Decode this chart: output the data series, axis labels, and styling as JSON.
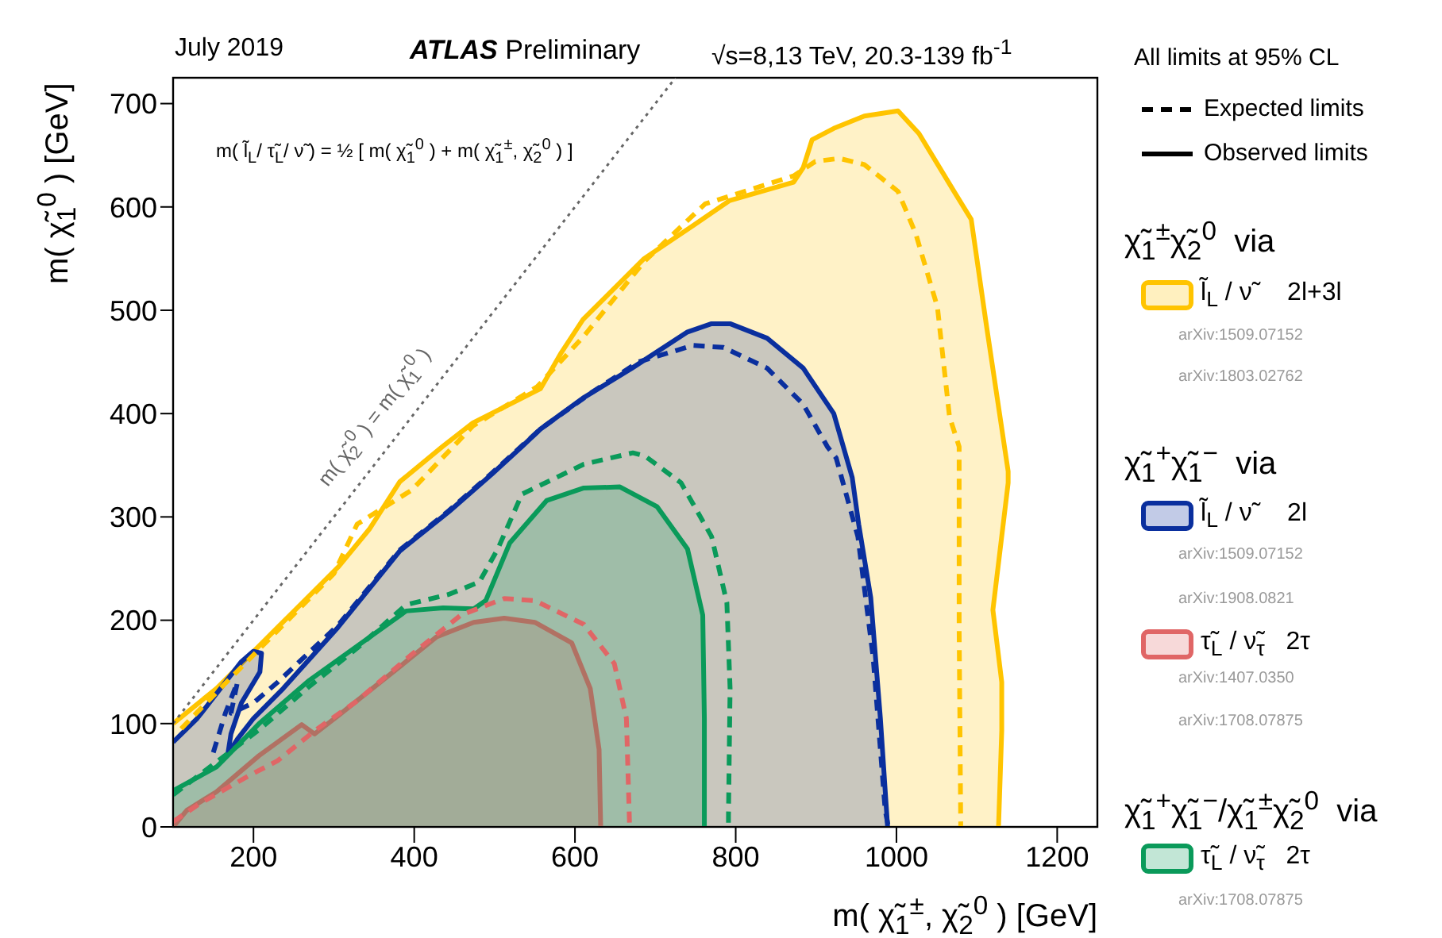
{
  "chart_data": {
    "type": "area",
    "title": "ATLAS Preliminary",
    "xlabel": "m( χ̃$_{1}$$^{±}$, χ̃$_{2}$$^{0}$ ) [GeV]",
    "ylabel": "m( χ̃$_{1}$$^{0}$ ) [GeV]",
    "legend_title": "All limits at 95% CL",
    "legend": "right",
    "grid": false,
    "xlim": [
      100,
      1250
    ],
    "xticks": [
      200,
      400,
      600,
      800,
      1000,
      1200
    ],
    "ylim": [
      0,
      725
    ],
    "yticks": [
      0,
      100,
      200,
      300,
      400,
      500,
      600,
      700
    ],
    "annotations": [
      "July 2019",
      "√s=8,13 TeV, 20.3-139 fb$^{-1}$",
      "m( l̃$_{L}$/ τ̃$_{L}$/ ν̃ ) = ½ [ m( χ̃$_{1}$$^{0}$ ) + m( χ̃$_{1}$$^{±}$,  χ̃$_{2}$$^{0}$ ) ]",
      "m( χ̃$_{2}$$^{0}$ ) = m( χ̃$_{1}$$^{0}$ )",
      "Expected limits",
      "Observed limits",
      "χ̃$_{1}$$^{±}$χ̃$_{2}$$^{0}$  via",
      "arXiv:1509.07152",
      "arXiv:1803.02762",
      "χ̃$_{1}$$^{+}$χ̃$_{1}$$^{−}$  via",
      "arXiv:1509.07152",
      "arXiv:1908.0821",
      "arXiv:1407.0350",
      "arXiv:1708.07875",
      "χ̃$_{1}$$^{+}$χ̃$_{1}$$^{−}$/χ̃$_{1}$$^{±}$χ̃$_{2}$$^{0}$  via",
      "arXiv:1708.07875"
    ],
    "series": [
      {
        "name": "l̃$_{L}$ / ν̃     2l+3l",
        "color": "#ffc400",
        "line_style": "solid",
        "x": [
          100,
          154,
          230,
          306,
          344,
          382,
          435,
          473,
          557,
          583,
          610,
          686,
          747,
          792,
          872,
          884,
          895,
          922,
          960,
          1002,
          1028,
          1074,
          1093,
          1112,
          1139,
          1139,
          1120,
          1131,
          1131,
          1127
        ],
        "values": [
          100,
          134,
          193,
          252,
          288,
          334,
          368,
          391,
          424,
          459,
          491,
          550,
          582,
          606,
          624,
          638,
          665,
          676,
          688,
          693,
          671,
          612,
          588,
          485,
          344,
          333,
          210,
          140,
          93,
          0
        ]
      },
      {
        "name": "l̃$_{L}$ / ν̃     2l",
        "color": "#0a2f9e",
        "line_style": "solid",
        "x": [
          100,
          130,
          160,
          185,
          200,
          210,
          208,
          185,
          172,
          168,
          180,
          200,
          237,
          305,
          382,
          443,
          496,
          534,
          557,
          610,
          671,
          740,
          770,
          793,
          839,
          884,
          922,
          945,
          953,
          968,
          980,
          989
        ],
        "values": [
          82,
          105,
          135,
          160,
          170,
          168,
          150,
          120,
          90,
          70,
          85,
          105,
          134,
          193,
          267,
          305,
          341,
          368,
          385,
          415,
          444,
          479,
          487,
          487,
          473,
          444,
          400,
          338,
          293,
          222,
          105,
          0
        ]
      },
      {
        "name": "τ̃$_{L}$ / ν̃$_{τ}$   2τ",
        "color": "#e06666",
        "line_style": "solid",
        "x": [
          100,
          117,
          154,
          207,
          260,
          276,
          306,
          382,
          428,
          474,
          512,
          550,
          596,
          619,
          630,
          632
        ],
        "values": [
          0,
          16,
          34,
          69,
          99,
          90,
          108,
          155,
          184,
          198,
          202,
          198,
          178,
          134,
          75,
          0
        ]
      },
      {
        "name": "τ̃$_{L}$ / ν̃$_{τ}$   2τ",
        "color": "#0a9a5a",
        "line_style": "solid",
        "x": [
          100,
          154,
          207,
          268,
          329,
          390,
          436,
          474,
          489,
          519,
          565,
          611,
          656,
          702,
          740,
          759,
          761,
          761
        ],
        "values": [
          35,
          58,
          100,
          141,
          175,
          209,
          212,
          211,
          219,
          275,
          316,
          328,
          329,
          310,
          269,
          205,
          105,
          0
        ]
      },
      {
        "type": "line",
        "color": "#ffc400",
        "line_style": "dashed",
        "x": [
          110,
          160,
          230,
          300,
          329,
          397,
          473,
          553,
          610,
          686,
          762,
          872,
          899,
          929,
          960,
          1002,
          1024,
          1051,
          1066,
          1078,
          1078,
          1080
        ],
        "values": [
          95,
          135,
          190,
          245,
          293,
          326,
          388,
          426,
          474,
          547,
          603,
          630,
          644,
          647,
          641,
          615,
          574,
          503,
          397,
          368,
          192,
          0
        ]
      },
      {
        "type": "line",
        "color": "#0a2f9e",
        "line_style": "dashed",
        "x": [
          150,
          165,
          180,
          172,
          200,
          230,
          305,
          382,
          443,
          496,
          557,
          620,
          679,
          747,
          785,
          839,
          884,
          914,
          925,
          952,
          971,
          986,
          990
        ],
        "values": [
          72,
          110,
          140,
          110,
          120,
          140,
          195,
          268,
          306,
          342,
          385,
          420,
          450,
          466,
          464,
          444,
          409,
          368,
          357,
          281,
          164,
          16,
          0
        ]
      },
      {
        "type": "line",
        "color": "#e06666",
        "line_style": "dashed",
        "x": [
          100,
          132,
          193,
          230,
          276,
          329,
          397,
          458,
          512,
          550,
          611,
          649,
          664,
          668
        ],
        "values": [
          5,
          22,
          49,
          64,
          93,
          122,
          167,
          205,
          221,
          219,
          196,
          158,
          105,
          0
        ]
      },
      {
        "type": "line",
        "color": "#0a9a5a",
        "line_style": "dashed",
        "x": [
          100,
          207,
          268,
          329,
          390,
          443,
          481,
          504,
          534,
          611,
          672,
          687,
          732,
          770,
          789,
          793,
          791,
          791
        ],
        "values": [
          31,
          94,
          135,
          173,
          215,
          225,
          237,
          269,
          322,
          351,
          362,
          359,
          333,
          281,
          217,
          134,
          11,
          0
        ]
      },
      {
        "type": "line",
        "color": "#666666",
        "line_style": "dotted",
        "x": [
          100,
          725
        ],
        "values": [
          100,
          725
        ]
      }
    ]
  }
}
